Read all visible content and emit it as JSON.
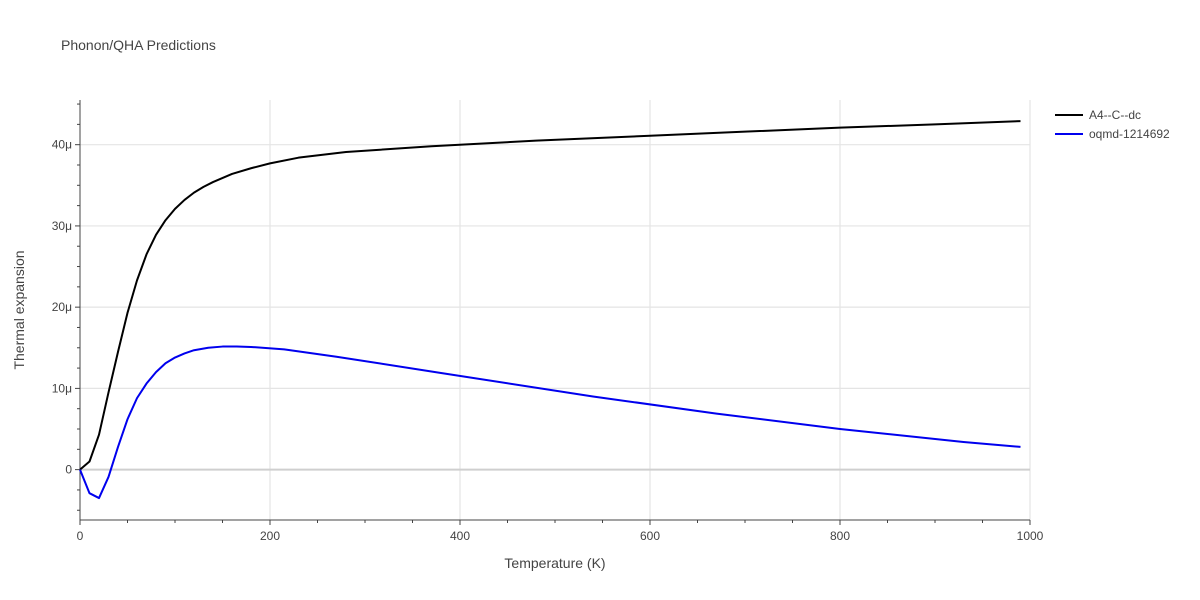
{
  "chart_data": {
    "type": "line",
    "title": "Phonon/QHA Predictions",
    "xlabel": "Temperature (K)",
    "ylabel": "Thermal expansion",
    "xlim": [
      0,
      1000
    ],
    "ylim": [
      -6.2e-06,
      4.55e-05
    ],
    "x_ticks": [
      0,
      200,
      400,
      600,
      800,
      1000
    ],
    "x_tick_labels": [
      "0",
      "200",
      "400",
      "600",
      "800",
      "1000"
    ],
    "y_ticks": [
      0,
      1e-05,
      2e-05,
      3e-05,
      4e-05
    ],
    "y_tick_labels": [
      "0",
      "10μ",
      "20μ",
      "30μ",
      "40μ"
    ],
    "grid": true,
    "legend_position": "top-right",
    "series": [
      {
        "name": "A4--C--dc",
        "color": "#000000",
        "x": [
          0,
          10,
          20,
          30,
          40,
          50,
          60,
          70,
          80,
          90,
          100,
          110,
          120,
          130,
          140,
          160,
          180,
          200,
          230,
          280,
          370,
          480,
          600,
          700,
          800,
          900,
          990
        ],
        "y": [
          0,
          1e-06,
          4.3e-06,
          9.5e-06,
          1.45e-05,
          1.93e-05,
          2.33e-05,
          2.65e-05,
          2.89e-05,
          3.07e-05,
          3.21e-05,
          3.32e-05,
          3.41e-05,
          3.48e-05,
          3.54e-05,
          3.64e-05,
          3.71e-05,
          3.77e-05,
          3.84e-05,
          3.91e-05,
          3.98e-05,
          4.05e-05,
          4.11e-05,
          4.16e-05,
          4.21e-05,
          4.25e-05,
          4.29e-05
        ]
      },
      {
        "name": "oqmd-1214692",
        "color": "#0000ee",
        "x": [
          0,
          10,
          20,
          30,
          40,
          50,
          60,
          70,
          80,
          90,
          100,
          110,
          120,
          135,
          150,
          165,
          180,
          215,
          270,
          380,
          540,
          670,
          800,
          930,
          990
        ],
        "y": [
          0,
          -2.9e-06,
          -3.5e-06,
          -9e-07,
          2.8e-06,
          6.2e-06,
          8.8e-06,
          1.06e-05,
          1.2e-05,
          1.31e-05,
          1.38e-05,
          1.43e-05,
          1.47e-05,
          1.5e-05,
          1.515e-05,
          1.515e-05,
          1.51e-05,
          1.48e-05,
          1.39e-05,
          1.19e-05,
          9e-06,
          6.9e-06,
          5e-06,
          3.4e-06,
          2.8e-06
        ]
      }
    ]
  }
}
